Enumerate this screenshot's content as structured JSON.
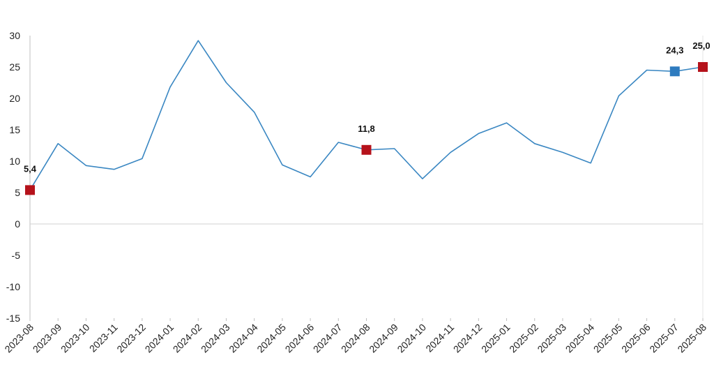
{
  "chart_data": {
    "type": "line",
    "title": "",
    "xlabel": "",
    "ylabel": "",
    "ylim": [
      -15,
      30
    ],
    "yticks": [
      30,
      25,
      20,
      15,
      10,
      5,
      0,
      -5,
      -10,
      -15
    ],
    "grid": false,
    "x": [
      "2023-08",
      "2023-09",
      "2023-10",
      "2023-11",
      "2023-12",
      "2024-01",
      "2024-02",
      "2024-03",
      "2024-04",
      "2024-05",
      "2024-06",
      "2024-07",
      "2024-08",
      "2024-09",
      "2024-10",
      "2024-11",
      "2024-12",
      "2025-01",
      "2025-02",
      "2025-03",
      "2025-04",
      "2025-05",
      "2025-06",
      "2025-07",
      "2025-08"
    ],
    "series": [
      {
        "values": [
          5.4,
          12.8,
          9.3,
          8.7,
          10.4,
          21.8,
          29.2,
          22.5,
          17.8,
          9.4,
          7.5,
          13.0,
          11.8,
          12.0,
          7.2,
          11.4,
          14.4,
          16.1,
          12.8,
          11.4,
          9.7,
          20.4,
          24.5,
          24.3,
          25.0
        ]
      }
    ],
    "highlights": [
      {
        "x": "2023-08",
        "value": 5.4,
        "label": "5,4",
        "color": "#b5121b"
      },
      {
        "x": "2024-08",
        "value": 11.8,
        "label": "11,8",
        "color": "#b5121b"
      },
      {
        "x": "2025-07",
        "value": 24.3,
        "label": "24,3",
        "color": "#2e7bbf"
      },
      {
        "x": "2025-08",
        "value": 25.0,
        "label": "25,0",
        "color": "#b5121b"
      }
    ],
    "colors": {
      "line": "#3a87c2",
      "zero_line": "#d0d0d0",
      "axis": "#bfbfbf"
    }
  }
}
